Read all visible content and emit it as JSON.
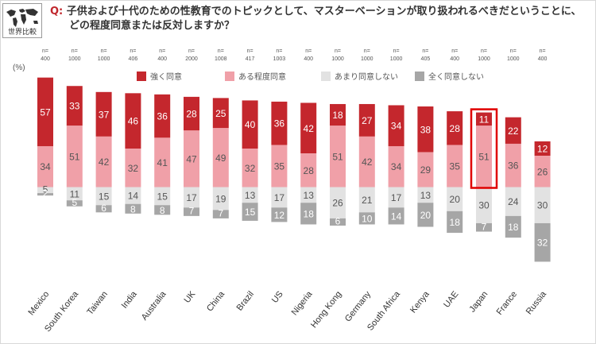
{
  "header": {
    "logo_label": "世界比較",
    "question_prefix": "Q:",
    "question_line1": "子供および十代のための性教育でのトピックとして、マスターベーションが取り扱われるべきだということに、",
    "question_line2": "どの程度同意または反対しますか？"
  },
  "chart_data": {
    "type": "bar",
    "stacked": true,
    "unit_label": "(%)",
    "title": "",
    "xlabel": "",
    "ylabel": "",
    "sample_prefix": "n=",
    "highlight": "Japan",
    "legend_placement": "top",
    "categories": [
      "Mexico",
      "South Korea",
      "Taiwan",
      "India",
      "Australia",
      "UK",
      "China",
      "Brazil",
      "US",
      "Nigeria",
      "Hong Kong",
      "Germany",
      "South Africa",
      "Kenya",
      "UAE",
      "Japan",
      "France",
      "Russia"
    ],
    "sample_sizes": [
      "400",
      "1000",
      "1000",
      "406",
      "400",
      "2000",
      "1008",
      "417",
      "1003",
      "400",
      "1000",
      "1000",
      "1000",
      "405",
      "400",
      "1000",
      "1000",
      "400"
    ],
    "series": [
      {
        "name": "強く同意",
        "color": "#c4272d",
        "text_color": "#ffffff",
        "values": [
          57,
          33,
          37,
          46,
          36,
          28,
          25,
          40,
          36,
          42,
          18,
          27,
          34,
          38,
          28,
          11,
          22,
          12
        ]
      },
      {
        "name": "ある程度同意",
        "color": "#f0a0a8",
        "text_color": "#555555",
        "values": [
          34,
          51,
          42,
          32,
          41,
          47,
          49,
          32,
          35,
          28,
          51,
          42,
          34,
          29,
          35,
          51,
          36,
          26
        ]
      },
      {
        "name": "あまり同意しない",
        "color": "#e2e2e2",
        "text_color": "#555555",
        "values": [
          5,
          11,
          15,
          14,
          15,
          17,
          19,
          13,
          17,
          13,
          26,
          21,
          17,
          13,
          20,
          30,
          24,
          30
        ]
      },
      {
        "name": "全く同意しない",
        "color": "#a6a6a6",
        "text_color": "#ffffff",
        "values": [
          2,
          5,
          6,
          8,
          8,
          7,
          7,
          15,
          12,
          18,
          6,
          10,
          14,
          20,
          18,
          7,
          18,
          32
        ]
      }
    ]
  }
}
